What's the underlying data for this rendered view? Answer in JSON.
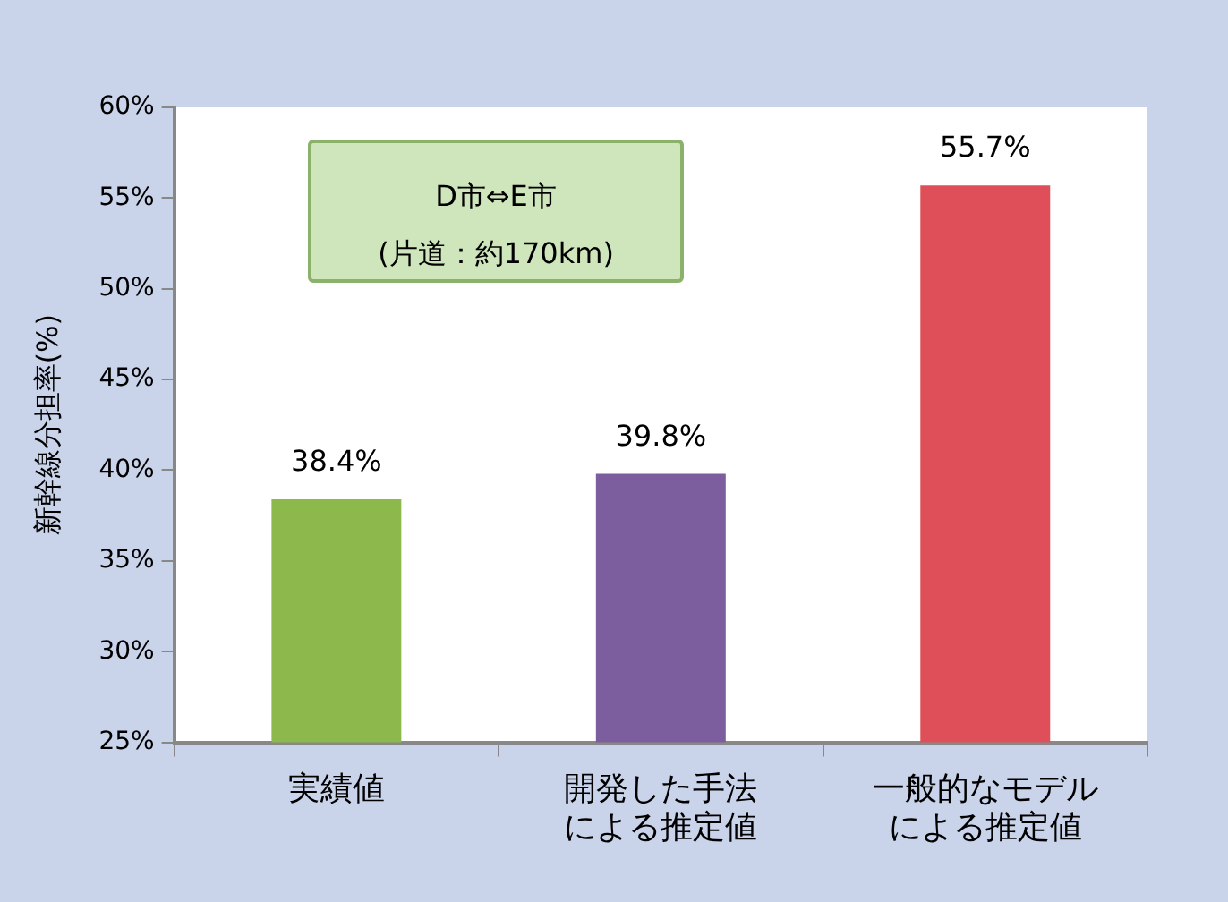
{
  "chart_data": {
    "type": "bar",
    "ylabel": "新幹線分担率(%)",
    "categories": [
      "実績値",
      "開発した手法による推定値",
      "一般的なモデルによる推定値"
    ],
    "values": [
      38.4,
      39.8,
      55.7
    ],
    "colors": [
      "#8cb84c",
      "#7c5e9e",
      "#df4f5a"
    ],
    "value_labels": [
      "38.4%",
      "39.8%",
      "55.7%"
    ],
    "ylim": [
      25,
      60
    ],
    "yticks": [
      {
        "value": 25,
        "label": "25%"
      },
      {
        "value": 30,
        "label": "30%"
      },
      {
        "value": 35,
        "label": "35%"
      },
      {
        "value": 40,
        "label": "40%"
      },
      {
        "value": 45,
        "label": "45%"
      },
      {
        "value": 50,
        "label": "50%"
      },
      {
        "value": 55,
        "label": "55%"
      },
      {
        "value": 60,
        "label": "60%"
      }
    ],
    "annotations": [
      "D市⇔E市",
      "(片道：約170km)"
    ],
    "grid": false,
    "legend": false
  }
}
